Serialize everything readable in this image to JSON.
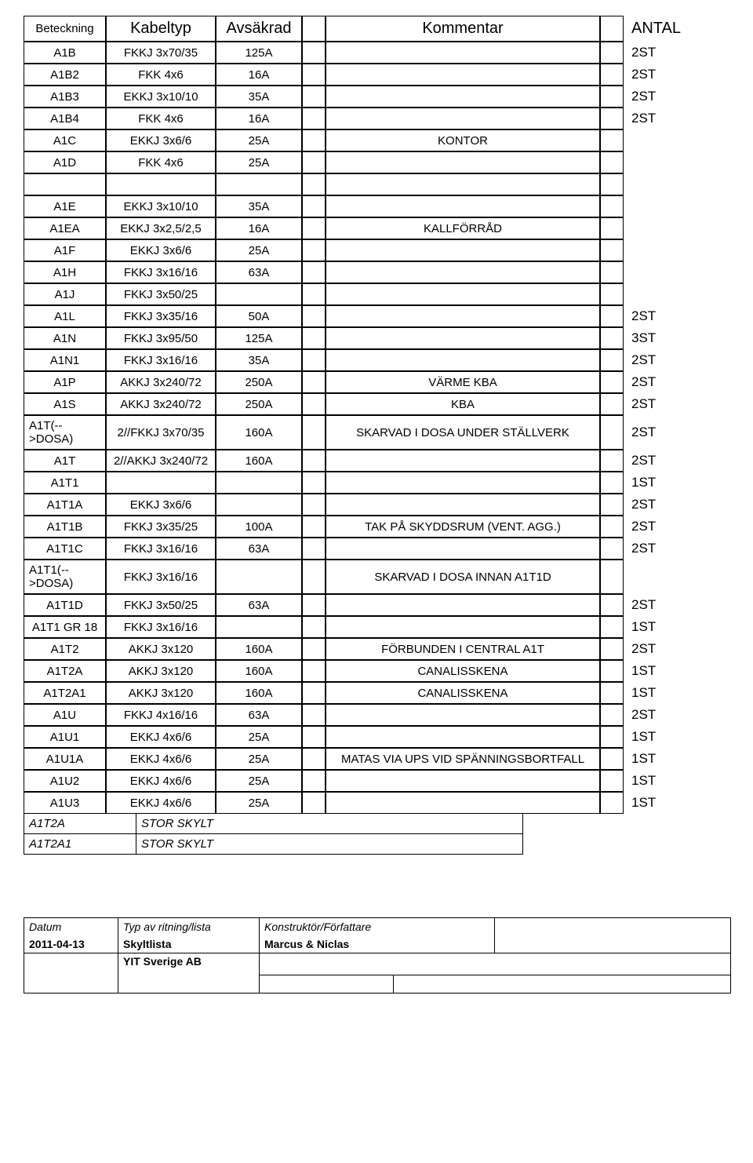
{
  "headers": {
    "beteckning": "Beteckning",
    "kabeltyp": "Kabeltyp",
    "avsakrad": "Avsäkrad",
    "kommentar": "Kommentar",
    "antal": "ANTAL"
  },
  "rows": [
    {
      "bet": "A1B",
      "kab": "FKKJ 3x70/35",
      "avs": "125A",
      "kom": "",
      "ant": "2ST"
    },
    {
      "bet": "A1B2",
      "kab": "FKK 4x6",
      "avs": "16A",
      "kom": "",
      "ant": "2ST"
    },
    {
      "bet": "A1B3",
      "kab": "EKKJ 3x10/10",
      "avs": "35A",
      "kom": "",
      "ant": "2ST"
    },
    {
      "bet": "A1B4",
      "kab": "FKK 4x6",
      "avs": "16A",
      "kom": "",
      "ant": "2ST"
    },
    {
      "bet": "A1C",
      "kab": "EKKJ 3x6/6",
      "avs": "25A",
      "kom": "KONTOR",
      "ant": ""
    },
    {
      "bet": "A1D",
      "kab": "FKK 4x6",
      "avs": "25A",
      "kom": "",
      "ant": ""
    }
  ],
  "rows2": [
    {
      "bet": "A1E",
      "kab": "EKKJ 3x10/10",
      "avs": "35A",
      "kom": "",
      "ant": ""
    },
    {
      "bet": "A1EA",
      "kab": "EKKJ 3x2,5/2,5",
      "avs": "16A",
      "kom": "KALLFÖRRÅD",
      "ant": ""
    },
    {
      "bet": "A1F",
      "kab": "EKKJ 3x6/6",
      "avs": "25A",
      "kom": "",
      "ant": ""
    },
    {
      "bet": "A1H",
      "kab": "FKKJ 3x16/16",
      "avs": "63A",
      "kom": "",
      "ant": ""
    },
    {
      "bet": "A1J",
      "kab": "FKKJ 3x50/25",
      "avs": "",
      "kom": "",
      "ant": ""
    },
    {
      "bet": "A1L",
      "kab": "FKKJ 3x35/16",
      "avs": "50A",
      "kom": "",
      "ant": "2ST"
    },
    {
      "bet": "A1N",
      "kab": "FKKJ 3x95/50",
      "avs": "125A",
      "kom": "",
      "ant": "3ST"
    },
    {
      "bet": "A1N1",
      "kab": "FKKJ 3x16/16",
      "avs": "35A",
      "kom": "",
      "ant": "2ST"
    },
    {
      "bet": "A1P",
      "kab": "AKKJ 3x240/72",
      "avs": "250A",
      "kom": "VÄRME KBA",
      "ant": "2ST"
    },
    {
      "bet": "A1S",
      "kab": "AKKJ 3x240/72",
      "avs": "250A",
      "kom": "KBA",
      "ant": "2ST"
    },
    {
      "bet": "A1T(--\n>DOSA)",
      "kab": "2//FKKJ 3x70/35",
      "avs": "160A",
      "kom": "SKARVAD I DOSA UNDER STÄLLVERK",
      "ant": "2ST"
    },
    {
      "bet": "A1T",
      "kab": "2//AKKJ 3x240/72",
      "avs": "160A",
      "kom": "",
      "ant": "2ST"
    },
    {
      "bet": "A1T1",
      "kab": "",
      "avs": "",
      "kom": "",
      "ant": "1ST"
    },
    {
      "bet": "A1T1A",
      "kab": "EKKJ 3x6/6",
      "avs": "",
      "kom": "",
      "ant": "2ST"
    },
    {
      "bet": "A1T1B",
      "kab": "FKKJ 3x35/25",
      "avs": "100A",
      "kom": "TAK PÅ SKYDDSRUM (VENT. AGG.)",
      "ant": "2ST"
    },
    {
      "bet": "A1T1C",
      "kab": "FKKJ 3x16/16",
      "avs": "63A",
      "kom": "",
      "ant": "2ST"
    },
    {
      "bet": "A1T1(--\n>DOSA)",
      "kab": "FKKJ 3x16/16",
      "avs": "",
      "kom": "SKARVAD I DOSA INNAN A1T1D",
      "ant": ""
    },
    {
      "bet": "A1T1D",
      "kab": "FKKJ 3x50/25",
      "avs": "63A",
      "kom": "",
      "ant": "2ST"
    },
    {
      "bet": "A1T1 GR 18",
      "kab": "FKKJ 3x16/16",
      "avs": "",
      "kom": "",
      "ant": "1ST"
    },
    {
      "bet": "A1T2",
      "kab": "AKKJ 3x120",
      "avs": "160A",
      "kom": "FÖRBUNDEN I CENTRAL A1T",
      "ant": "2ST"
    },
    {
      "bet": "A1T2A",
      "kab": "AKKJ 3x120",
      "avs": "160A",
      "kom": "CANALISSKENA",
      "ant": "1ST"
    },
    {
      "bet": "A1T2A1",
      "kab": "AKKJ 3x120",
      "avs": "160A",
      "kom": "CANALISSKENA",
      "ant": "1ST"
    },
    {
      "bet": "A1U",
      "kab": "FKKJ 4x16/16",
      "avs": "63A",
      "kom": "",
      "ant": "2ST"
    },
    {
      "bet": "A1U1",
      "kab": "EKKJ 4x6/6",
      "avs": "25A",
      "kom": "",
      "ant": "1ST"
    },
    {
      "bet": "A1U1A",
      "kab": "EKKJ 4x6/6",
      "avs": "25A",
      "kom": "MATAS VIA UPS VID SPÄNNINGSBORTFALL",
      "ant": "1ST"
    },
    {
      "bet": "A1U2",
      "kab": "EKKJ 4x6/6",
      "avs": "25A",
      "kom": "",
      "ant": "1ST"
    },
    {
      "bet": "A1U3",
      "kab": "EKKJ 4x6/6",
      "avs": "25A",
      "kom": "",
      "ant": "1ST"
    }
  ],
  "footer_notes": [
    {
      "a": "A1T2A",
      "b": "STOR SKYLT"
    },
    {
      "a": "A1T2A1",
      "b": "STOR SKYLT"
    }
  ],
  "title_block": {
    "datum_label": "Datum",
    "typ_label": "Typ av ritning/lista",
    "konstr_label": "Konstruktör/Författare",
    "datum": "2011-04-13",
    "typ": "Skyltlista",
    "konstr": "Marcus & Niclas",
    "company": "YIT Sverige AB"
  }
}
